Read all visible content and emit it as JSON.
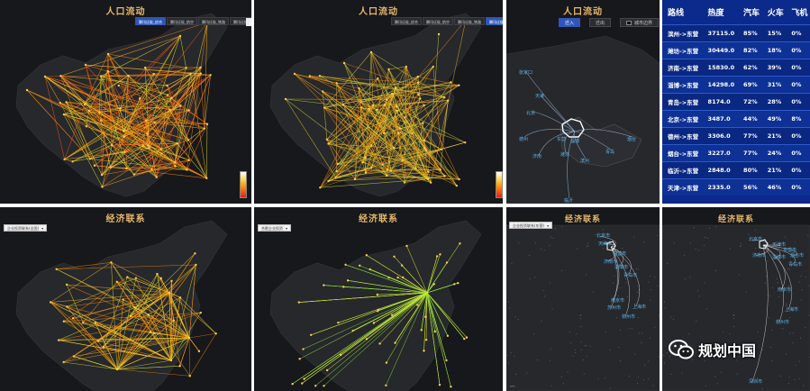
{
  "panels": {
    "population_1": {
      "title": "人口流动",
      "tabs": [
        {
          "label": "腾讯迁徙_综合",
          "active": true
        },
        {
          "label": "腾讯迁徙_航空",
          "active": false
        },
        {
          "label": "腾讯迁徙_铁路",
          "active": false
        },
        {
          "label": "腾讯迁徙_公路",
          "active": false
        }
      ]
    },
    "population_2": {
      "title": "人口流动",
      "tabs": [
        {
          "label": "腾讯迁徙_综合",
          "active": false
        },
        {
          "label": "腾讯迁徙_航空",
          "active": false
        },
        {
          "label": "腾讯迁徙_铁路",
          "active": false
        },
        {
          "label": "腾讯迁徙_公路",
          "active": true
        }
      ]
    },
    "population_3": {
      "title": "人口流动",
      "buttons": [
        {
          "label": "迁入",
          "active": true
        },
        {
          "label": "迁出",
          "active": false
        }
      ],
      "toggle_label": "城市边界",
      "cities": [
        "张家口",
        "天津",
        "北京",
        "德州",
        "东营",
        "淄博",
        "烟台",
        "济南",
        "潍坊",
        "滨州",
        "青岛",
        "临沂"
      ]
    },
    "economy_1": {
      "title": "经济联系",
      "dropdown": "企业投资联系(全国)"
    },
    "economy_2": {
      "title": "经济联系",
      "dropdown": "合肥企业投资"
    },
    "economy_3": {
      "title": "经济联系",
      "dropdown": "企业投资联系(东营)",
      "cities": [
        "北京市",
        "天津市",
        "东营市",
        "济南市",
        "淄博市",
        "青岛市",
        "南京市",
        "苏州市",
        "上海市",
        "杭州市"
      ]
    },
    "economy_4": {
      "title": "经济联系",
      "cities": [
        "北京市",
        "天津市",
        "东营市",
        "济南市",
        "淄博市",
        "青岛市",
        "烟台市",
        "南京市",
        "上海市",
        "杭州市",
        "深圳市"
      ]
    }
  },
  "route_table": {
    "headers": [
      "路线",
      "热度",
      "汽车",
      "火车",
      "飞机"
    ],
    "rows": [
      [
        "滨州->东营",
        "37115.0",
        "85%",
        "15%",
        "0%"
      ],
      [
        "潍坊->东营",
        "30449.0",
        "82%",
        "18%",
        "0%"
      ],
      [
        "济南->东营",
        "15830.0",
        "62%",
        "39%",
        "0%"
      ],
      [
        "淄博->东营",
        "14298.0",
        "69%",
        "31%",
        "0%"
      ],
      [
        "青岛->东营",
        "8174.0",
        "72%",
        "28%",
        "0%"
      ],
      [
        "北京->东营",
        "3487.0",
        "44%",
        "49%",
        "8%"
      ],
      [
        "德州->东营",
        "3306.0",
        "77%",
        "21%",
        "0%"
      ],
      [
        "烟台->东营",
        "3227.0",
        "77%",
        "24%",
        "0%"
      ],
      [
        "临沂->东营",
        "2848.0",
        "80%",
        "21%",
        "0%"
      ],
      [
        "天津->东营",
        "2335.0",
        "56%",
        "46%",
        "0%"
      ]
    ]
  },
  "watermark": "规划中国",
  "colors": {
    "title_gold": "#e8b86a",
    "accent_blue": "#2f56b8",
    "table_bg": "#0b2a8c",
    "city_label": "#5bb4ea",
    "flow_orange": "#ff8a00",
    "flow_yellow": "#e6e62e",
    "flow_green": "#9be23a"
  }
}
